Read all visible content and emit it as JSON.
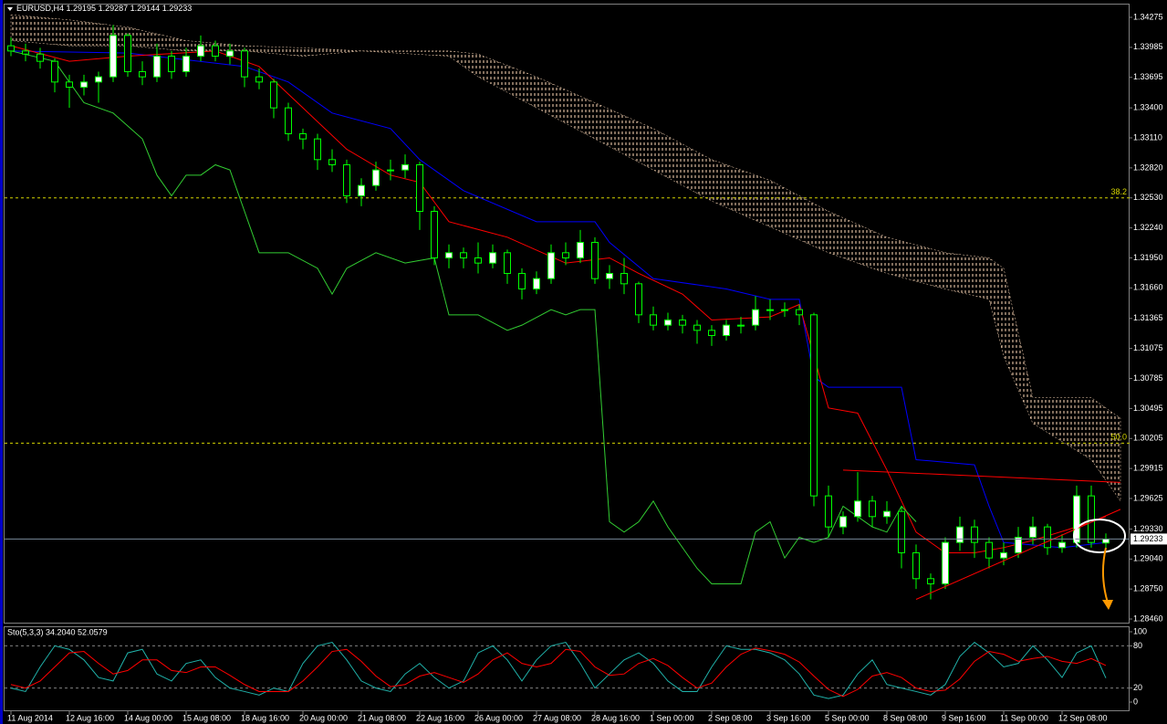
{
  "chart_data": [
    {
      "type": "candlestick",
      "symbol": "EURUSD,H4",
      "ylim": [
        1.28416,
        1.34372
      ],
      "yticks": [
        1.34275,
        1.33985,
        1.33695,
        {
          "value": 1.334,
          "label": "1.33400"
        },
        {
          "value": 1.3311,
          "label": "1.33110"
        },
        {
          "value": 1.3282,
          "label": "1.32820"
        },
        {
          "value": 1.3253,
          "label": "1.32530"
        },
        {
          "value": 1.3224,
          "label": "1.32240"
        },
        {
          "value": 1.3195,
          "label": "1.31950"
        },
        {
          "value": 1.3166,
          "label": "1.31660"
        },
        1.31365,
        1.31075,
        1.30785,
        1.30495,
        1.30205,
        1.29915,
        1.29625,
        {
          "value": 1.2933,
          "label": "1.29330"
        },
        {
          "value": 1.2904,
          "label": "1.29040"
        },
        {
          "value": 1.2875,
          "label": "1.28750"
        },
        {
          "value": 1.2846,
          "label": "1.28460"
        }
      ],
      "categories": [
        "11 Aug 2014",
        null,
        null,
        null,
        "12 Aug 16:00",
        null,
        null,
        null,
        "14 Aug 00:00",
        null,
        null,
        null,
        "15 Aug 08:00",
        null,
        null,
        null,
        "18 Aug 16:00",
        null,
        null,
        null,
        "20 Aug 00:00",
        null,
        null,
        null,
        "21 Aug 08:00",
        null,
        null,
        null,
        "22 Aug 16:00",
        null,
        null,
        null,
        "26 Aug 00:00",
        null,
        null,
        null,
        "27 Aug 08:00",
        null,
        null,
        null,
        "28 Aug 16:00",
        null,
        null,
        null,
        "1 Sep 00:00",
        null,
        null,
        null,
        "2 Sep 08:00",
        null,
        null,
        null,
        "3 Sep 16:00",
        null,
        null,
        null,
        "5 Sep 00:00",
        null,
        null,
        null,
        "8 Sep 08:00",
        null,
        null,
        null,
        "9 Sep 16:00",
        null,
        null,
        null,
        "11 Sep 00:00",
        null,
        null,
        null,
        "12 Sep 08:00",
        null,
        null,
        null
      ],
      "bull_color": "#ffffff",
      "bear_color": "#000000",
      "wick_color": "#00ff00",
      "candles": [
        [
          1.34,
          1.3408,
          1.339,
          1.3395
        ],
        [
          1.3395,
          1.3402,
          1.3385,
          1.3392
        ],
        [
          1.3392,
          1.3398,
          1.3378,
          1.3385
        ],
        [
          1.3385,
          1.3388,
          1.3355,
          1.3365
        ],
        [
          1.3365,
          1.3372,
          1.334,
          1.336
        ],
        [
          1.336,
          1.3372,
          1.3352,
          1.3365
        ],
        [
          1.3365,
          1.3375,
          1.3345,
          1.337
        ],
        [
          1.337,
          1.342,
          1.3365,
          1.341
        ],
        [
          1.341,
          1.3412,
          1.337,
          1.3375
        ],
        [
          1.3375,
          1.3385,
          1.3362,
          1.337
        ],
        [
          1.337,
          1.3402,
          1.3365,
          1.339
        ],
        [
          1.339,
          1.3395,
          1.3368,
          1.3375
        ],
        [
          1.3375,
          1.3398,
          1.337,
          1.339
        ],
        [
          1.339,
          1.341,
          1.3385,
          1.34
        ],
        [
          1.34,
          1.3405,
          1.3385,
          1.339
        ],
        [
          1.339,
          1.3402,
          1.3382,
          1.3395
        ],
        [
          1.3395,
          1.3398,
          1.336,
          1.337
        ],
        [
          1.337,
          1.3378,
          1.3358,
          1.3365
        ],
        [
          1.3365,
          1.3368,
          1.333,
          1.334
        ],
        [
          1.334,
          1.3345,
          1.3308,
          1.3315
        ],
        [
          1.3315,
          1.332,
          1.33,
          1.331
        ],
        [
          1.331,
          1.3315,
          1.328,
          1.329
        ],
        [
          1.329,
          1.33,
          1.3278,
          1.3285
        ],
        [
          1.3285,
          1.329,
          1.3248,
          1.3255
        ],
        [
          1.3255,
          1.3272,
          1.3245,
          1.3265
        ],
        [
          1.3265,
          1.3288,
          1.326,
          1.328
        ],
        [
          1.328,
          1.329,
          1.327,
          1.328
        ],
        [
          1.328,
          1.3295,
          1.3272,
          1.3285
        ],
        [
          1.3285,
          1.3288,
          1.3222,
          1.324
        ],
        [
          1.324,
          1.3245,
          1.3188,
          1.3195
        ],
        [
          1.3195,
          1.3208,
          1.3185,
          1.32
        ],
        [
          1.32,
          1.3205,
          1.3185,
          1.3195
        ],
        [
          1.3195,
          1.321,
          1.318,
          1.319
        ],
        [
          1.319,
          1.3208,
          1.3185,
          1.32
        ],
        [
          1.32,
          1.3203,
          1.317,
          1.318
        ],
        [
          1.318,
          1.3185,
          1.3155,
          1.3165
        ],
        [
          1.3165,
          1.3182,
          1.316,
          1.3175
        ],
        [
          1.3175,
          1.3208,
          1.317,
          1.32
        ],
        [
          1.32,
          1.321,
          1.3188,
          1.3195
        ],
        [
          1.3195,
          1.3222,
          1.319,
          1.321
        ],
        [
          1.321,
          1.3215,
          1.317,
          1.3175
        ],
        [
          1.3175,
          1.3188,
          1.3165,
          1.318
        ],
        [
          1.318,
          1.3195,
          1.316,
          1.317
        ],
        [
          1.317,
          1.3172,
          1.3132,
          1.314
        ],
        [
          1.314,
          1.3148,
          1.3125,
          1.313
        ],
        [
          1.313,
          1.3142,
          1.3125,
          1.3135
        ],
        [
          1.3135,
          1.314,
          1.3122,
          1.313
        ],
        [
          1.313,
          1.3135,
          1.3112,
          1.3125
        ],
        [
          1.3125,
          1.313,
          1.311,
          1.312
        ],
        [
          1.312,
          1.3135,
          1.3115,
          1.313
        ],
        [
          1.313,
          1.3138,
          1.3122,
          1.313
        ],
        [
          1.313,
          1.3158,
          1.3125,
          1.3145
        ],
        [
          1.3145,
          1.3155,
          1.3135,
          1.3145
        ],
        [
          1.3145,
          1.3152,
          1.3138,
          1.3145
        ],
        [
          1.3145,
          1.315,
          1.313,
          1.314
        ],
        [
          1.314,
          1.3142,
          1.2955,
          1.2965
        ],
        [
          1.2965,
          1.2975,
          1.2925,
          1.2935
        ],
        [
          1.2935,
          1.295,
          1.2928,
          1.2945
        ],
        [
          1.2945,
          1.2988,
          1.294,
          1.296
        ],
        [
          1.296,
          1.2965,
          1.2935,
          1.2945
        ],
        [
          1.2945,
          1.296,
          1.2938,
          1.295
        ],
        [
          1.295,
          1.2955,
          1.2895,
          1.291
        ],
        [
          1.291,
          1.2918,
          1.2875,
          1.2885
        ],
        [
          1.2885,
          1.289,
          1.2865,
          1.288
        ],
        [
          1.288,
          1.2925,
          1.2875,
          1.292
        ],
        [
          1.292,
          1.2945,
          1.2912,
          1.2935
        ],
        [
          1.2935,
          1.2942,
          1.2905,
          1.292
        ],
        [
          1.292,
          1.2925,
          1.2895,
          1.2905
        ],
        [
          1.2905,
          1.292,
          1.2898,
          1.291
        ],
        [
          1.291,
          1.2935,
          1.2905,
          1.2925
        ],
        [
          1.2925,
          1.2945,
          1.2918,
          1.2935
        ],
        [
          1.2935,
          1.2938,
          1.2908,
          1.2915
        ],
        [
          1.2915,
          1.2928,
          1.291,
          1.292
        ],
        [
          1.292,
          1.2975,
          1.2915,
          1.2965
        ],
        [
          1.2965,
          1.2975,
          1.2915,
          1.292
        ],
        [
          1.29195,
          1.29287,
          1.29144,
          1.29233
        ]
      ],
      "lines": [
        {
          "color": "#0000ff",
          "x": [
            0,
            8,
            16,
            19,
            22,
            26,
            28,
            31,
            36,
            40,
            41,
            44,
            49,
            52,
            54,
            55,
            56,
            61,
            62,
            66,
            67,
            68,
            72,
            75
          ],
          "values": [
            1.3395,
            1.3393,
            1.338,
            1.3365,
            1.3335,
            1.332,
            1.329,
            1.326,
            1.323,
            1.323,
            1.321,
            1.3175,
            1.3165,
            1.3155,
            1.3155,
            1.308,
            1.307,
            1.307,
            1.3,
            1.2995,
            1.2955,
            1.292,
            1.2915,
            1.292
          ]
        },
        {
          "color": "#ff0000",
          "x": [
            0,
            4,
            8,
            14,
            17,
            20,
            23,
            26,
            28,
            30,
            34,
            38,
            41,
            43,
            46,
            48,
            52,
            54,
            56,
            58,
            60,
            62,
            64,
            66,
            68,
            70,
            73,
            75
          ],
          "values": [
            1.34,
            1.3385,
            1.339,
            1.3395,
            1.338,
            1.334,
            1.33,
            1.3275,
            1.3268,
            1.323,
            1.3215,
            1.319,
            1.3195,
            1.318,
            1.316,
            1.3135,
            1.3138,
            1.315,
            1.305,
            1.3045,
            1.299,
            1.293,
            1.291,
            1.291,
            1.2915,
            1.2922,
            1.2935,
            1.2945
          ]
        },
        {
          "color": "#32cd32",
          "x": [
            0,
            3,
            5,
            7,
            9,
            10,
            11,
            12,
            13,
            14,
            15,
            16,
            17,
            19,
            21,
            22,
            23,
            25,
            27,
            29,
            30,
            32,
            34,
            35,
            37,
            38,
            39,
            40,
            41,
            42,
            43,
            44,
            45,
            47,
            48,
            50,
            51,
            52,
            53,
            54,
            55,
            56,
            57,
            58,
            59,
            60,
            61,
            62
          ],
          "values": [
            1.3395,
            1.3385,
            1.3345,
            1.3335,
            1.331,
            1.3275,
            1.3255,
            1.3275,
            1.3275,
            1.3285,
            1.328,
            1.324,
            1.32,
            1.32,
            1.3185,
            1.316,
            1.3185,
            1.32,
            1.319,
            1.3195,
            1.314,
            1.314,
            1.3125,
            1.313,
            1.3145,
            1.314,
            1.3145,
            1.3145,
            1.294,
            1.293,
            1.294,
            1.296,
            1.2935,
            1.2895,
            1.288,
            1.288,
            1.293,
            1.294,
            1.2905,
            1.2925,
            1.292,
            1.2925,
            1.2955,
            1.2945,
            1.2935,
            1.293,
            1.2955,
            1.294
          ]
        }
      ],
      "cloud": {
        "color": "#ffdab9",
        "x": [
          0,
          4,
          8,
          12,
          16,
          20,
          24,
          30,
          32,
          36,
          40,
          44,
          48,
          52,
          56,
          60,
          64,
          67,
          68,
          70,
          74,
          76
        ],
        "span_a": [
          1.343,
          1.3425,
          1.3418,
          1.3405,
          1.34,
          1.3398,
          1.3395,
          1.3395,
          1.3392,
          1.337,
          1.3345,
          1.332,
          1.329,
          1.327,
          1.324,
          1.3215,
          1.32,
          1.3195,
          1.3185,
          1.306,
          1.306,
          1.304
        ],
        "span_b": [
          1.3405,
          1.34,
          1.34,
          1.3395,
          1.3395,
          1.339,
          1.3395,
          1.339,
          1.337,
          1.334,
          1.331,
          1.328,
          1.325,
          1.3225,
          1.32,
          1.318,
          1.3165,
          1.3155,
          1.31,
          1.3035,
          1.3,
          1.296
        ]
      },
      "trendlines": [
        {
          "color": "#ff0000",
          "x": [
            62,
            76
          ],
          "values": [
            1.2865,
            1.2952
          ]
        },
        {
          "color": "#ff0000",
          "x": [
            57,
            76
          ],
          "values": [
            1.299,
            1.2978
          ]
        }
      ],
      "fib_color": "#d4d400",
      "fib_levels": [
        {
          "label": "38.2",
          "value": 1.3253
        },
        {
          "label": "50.0",
          "value": 1.3016
        }
      ],
      "price_line_color": "#778899"
    },
    {
      "type": "line",
      "title": "Sto(5,3,3) 34.2040 52.0579",
      "ylim": [
        0,
        100
      ],
      "yticks": [
        0,
        20,
        80,
        100
      ],
      "series": [
        {
          "color": "#20b2aa",
          "values": [
            20,
            15,
            50,
            80,
            75,
            60,
            35,
            30,
            70,
            75,
            40,
            30,
            55,
            60,
            35,
            20,
            15,
            10,
            20,
            15,
            55,
            80,
            85,
            60,
            30,
            20,
            15,
            40,
            55,
            35,
            20,
            30,
            70,
            80,
            60,
            30,
            60,
            80,
            85,
            55,
            20,
            40,
            60,
            70,
            55,
            30,
            15,
            15,
            50,
            80,
            75,
            75,
            70,
            60,
            40,
            10,
            5,
            10,
            40,
            60,
            25,
            20,
            15,
            10,
            25,
            65,
            85,
            70,
            50,
            55,
            80,
            60,
            35,
            70,
            80,
            34.204
          ]
        },
        {
          "color": "#ff0000",
          "values": [
            25,
            20,
            30,
            50,
            70,
            72,
            55,
            40,
            45,
            60,
            60,
            45,
            42,
            50,
            50,
            38,
            25,
            15,
            15,
            15,
            30,
            50,
            72,
            75,
            58,
            37,
            22,
            25,
            37,
            42,
            35,
            28,
            40,
            60,
            70,
            55,
            50,
            55,
            75,
            72,
            50,
            38,
            40,
            55,
            62,
            52,
            35,
            20,
            27,
            50,
            68,
            77,
            73,
            68,
            57,
            37,
            18,
            8,
            18,
            37,
            42,
            35,
            20,
            15,
            17,
            33,
            58,
            72,
            68,
            58,
            62,
            65,
            58,
            55,
            62,
            52.0579
          ]
        }
      ]
    }
  ]
}
